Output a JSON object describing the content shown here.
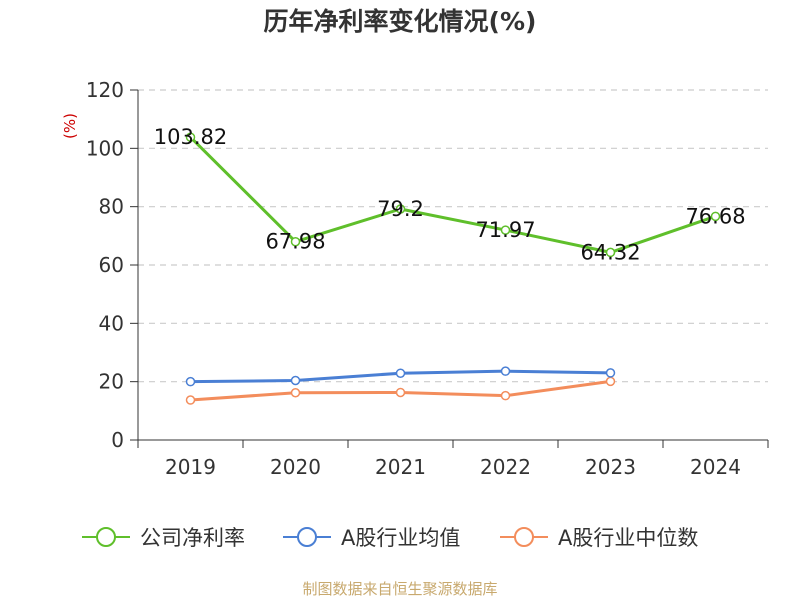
{
  "chart_data": {
    "type": "line",
    "title": "历年净利率变化情况(%)",
    "ylabel": "(%)",
    "categories": [
      "2019",
      "2020",
      "2021",
      "2022",
      "2023",
      "2024"
    ],
    "ylim": [
      0,
      120
    ],
    "yticks": [
      0,
      20,
      40,
      60,
      80,
      100,
      120
    ],
    "grid": true,
    "legend_position": "bottom",
    "series": [
      {
        "name": "公司净利率",
        "color": "#5fbf2b",
        "values": [
          103.82,
          67.98,
          79.2,
          71.97,
          64.32,
          76.68
        ],
        "labels": [
          "103.82",
          "67.98",
          "79.2",
          "71.97",
          "64.32",
          "76.68"
        ]
      },
      {
        "name": "A股行业均值",
        "color": "#4a7fd4",
        "values": [
          20.0,
          20.4,
          22.9,
          23.6,
          23.0,
          null
        ]
      },
      {
        "name": "A股行业中位数",
        "color": "#f38d5c",
        "values": [
          13.7,
          16.2,
          16.3,
          15.2,
          20.1,
          null
        ]
      }
    ],
    "source": "制图数据来自恒生聚源数据库"
  }
}
